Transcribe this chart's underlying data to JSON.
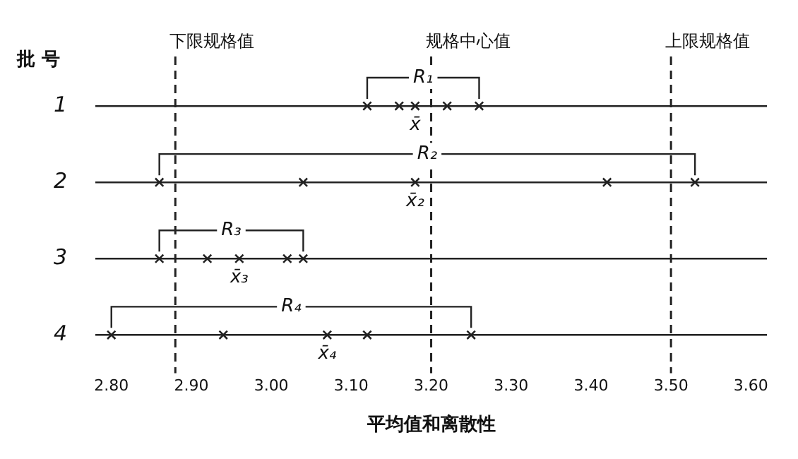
{
  "chart_data": {
    "type": "scatter",
    "orientation": "horizontal",
    "ylabel": "批 号",
    "xlabel": "平均值和离散性",
    "categories": [
      "1",
      "2",
      "3",
      "4"
    ],
    "series": [
      {
        "color": "#222222",
        "x": [
          "1",
          "1",
          "1",
          "1",
          "1"
        ],
        "values": [
          3.12,
          3.16,
          3.18,
          3.22,
          3.26
        ]
      },
      {
        "color": "#222222",
        "x": [
          "2",
          "2",
          "2",
          "2",
          "2"
        ],
        "values": [
          2.86,
          3.04,
          3.18,
          3.42,
          3.53
        ]
      },
      {
        "color": "#222222",
        "x": [
          "3",
          "3",
          "3",
          "3",
          "3"
        ],
        "values": [
          2.86,
          2.92,
          2.96,
          3.02,
          3.04
        ]
      },
      {
        "color": "#222222",
        "x": [
          "4",
          "4",
          "4",
          "4",
          "4"
        ],
        "values": [
          2.8,
          2.94,
          3.07,
          3.12,
          3.25
        ]
      }
    ],
    "xlim": [
      2.78,
      3.62
    ],
    "xticks": [
      {
        "value": 2.8,
        "label": "2.80"
      },
      {
        "value": 2.9,
        "label": "2.90"
      },
      {
        "value": 3.0,
        "label": "3.00"
      },
      {
        "value": 3.1,
        "label": "3.10"
      },
      {
        "value": 3.2,
        "label": "3.20"
      },
      {
        "value": 3.3,
        "label": "3.30"
      },
      {
        "value": 3.4,
        "label": "3.40"
      },
      {
        "value": 3.5,
        "label": "3.50"
      },
      {
        "value": 3.6,
        "label": "3.60"
      }
    ],
    "ref_lines": [
      {
        "axis": "x",
        "value": 2.88,
        "label": "下限规格值",
        "line_style": "dashed",
        "color": "#222222"
      },
      {
        "axis": "x",
        "value": 3.2,
        "label": "规格中心值",
        "line_style": "dashed",
        "color": "#222222"
      },
      {
        "axis": "x",
        "value": 3.5,
        "label": "上限规格值",
        "line_style": "dashed",
        "color": "#222222"
      }
    ],
    "annotations": [
      "R₁",
      "R₂",
      "R₃",
      "R₄",
      {
        "text": "x̄",
        "x": 3.18,
        "y": "1"
      },
      {
        "text": "x̄₂",
        "x": 3.18,
        "y": "2"
      },
      {
        "text": "x̄₃",
        "x": 2.96,
        "y": "3"
      },
      {
        "text": "x̄₄",
        "x": 3.07,
        "y": "4"
      }
    ],
    "grid": "y",
    "marker": "cross",
    "legend": false
  }
}
